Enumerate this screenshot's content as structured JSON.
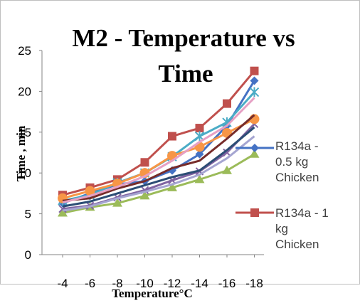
{
  "chart_data": {
    "type": "line",
    "title_lines": [
      "M2 - Temperature vs",
      "Time"
    ],
    "xlabel": "Temperature°C",
    "ylabel": "Time , min",
    "categories": [
      "-4",
      "-6",
      "-8",
      "-10",
      "-12",
      "-14",
      "-16",
      "-18"
    ],
    "ylim": [
      0,
      25
    ],
    "yticks": [
      "0",
      "5",
      "10",
      "15",
      "20",
      "25"
    ],
    "grid": false,
    "legend_position": "right",
    "series": [
      {
        "name_lines": [
          "R134a -",
          "0.5 kg",
          "Chicken"
        ],
        "color": "#4472c4",
        "marker": "diamond",
        "values": [
          6.3,
          7.5,
          8.6,
          9.0,
          10.3,
          12.3,
          15.8,
          21.3
        ]
      },
      {
        "name_lines": [
          "R134a - 1",
          "kg",
          "Chicken"
        ],
        "color": "#c0504d",
        "marker": "square",
        "values": [
          7.3,
          8.2,
          9.2,
          11.3,
          14.5,
          15.5,
          18.5,
          22.5
        ]
      },
      {
        "color": "#9bbb59",
        "marker": "triangle",
        "values": [
          5.1,
          5.8,
          6.3,
          7.2,
          8.2,
          9.2,
          10.3,
          12.3
        ]
      },
      {
        "color": "#8064a2",
        "marker": "x",
        "values": [
          5.6,
          6.0,
          7.0,
          7.9,
          9.1,
          10.2,
          12.5,
          16.0
        ]
      },
      {
        "color": "#4bacc6",
        "marker": "star",
        "values": [
          6.6,
          7.3,
          8.8,
          10.0,
          12.0,
          14.5,
          16.2,
          19.9
        ]
      },
      {
        "color": "#f79646",
        "marker": "circle",
        "values": [
          6.9,
          7.8,
          8.7,
          10.0,
          12.1,
          13.2,
          14.9,
          16.6
        ]
      },
      {
        "color": "#2c4d75",
        "marker": "none",
        "values": [
          5.9,
          6.5,
          7.5,
          8.5,
          9.5,
          10.3,
          12.8,
          15.6
        ]
      },
      {
        "color": "#772c2a",
        "marker": "none",
        "values": [
          6.6,
          6.9,
          8.1,
          9.0,
          10.6,
          11.5,
          14.2,
          17.1
        ]
      },
      {
        "color": "#a5a5d1",
        "marker": "none",
        "values": [
          5.4,
          5.9,
          6.9,
          7.7,
          8.6,
          9.8,
          11.8,
          14.5
        ]
      },
      {
        "color": "#e6a0c4",
        "marker": "none",
        "values": [
          6.4,
          7.2,
          8.3,
          9.6,
          11.5,
          13.8,
          15.8,
          19.2
        ]
      }
    ]
  }
}
